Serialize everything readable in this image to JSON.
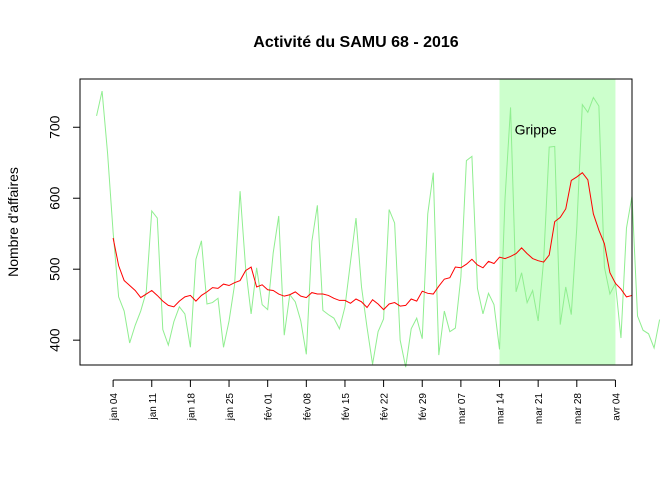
{
  "chart_data": {
    "type": "line",
    "title": "Activité du SAMU 68 - 2016",
    "xlabel": "",
    "ylabel": "Nombre d'affaires",
    "x_range": [
      "2015-12-29",
      "2016-04-07"
    ],
    "ylim": [
      365,
      768
    ],
    "y_ticks": [
      400,
      500,
      600,
      700
    ],
    "x_ticks": [
      {
        "date": "2016-01-04",
        "label": "jan 04"
      },
      {
        "date": "2016-01-11",
        "label": "jan 11"
      },
      {
        "date": "2016-01-18",
        "label": "jan 18"
      },
      {
        "date": "2016-01-25",
        "label": "jan 25"
      },
      {
        "date": "2016-02-01",
        "label": "fév 01"
      },
      {
        "date": "2016-02-08",
        "label": "fév 08"
      },
      {
        "date": "2016-02-15",
        "label": "fév 15"
      },
      {
        "date": "2016-02-22",
        "label": "fév 22"
      },
      {
        "date": "2016-02-29",
        "label": "fév 29"
      },
      {
        "date": "2016-03-07",
        "label": "mar 07"
      },
      {
        "date": "2016-03-14",
        "label": "mar 14"
      },
      {
        "date": "2016-03-21",
        "label": "mar 21"
      },
      {
        "date": "2016-03-28",
        "label": "mar 28"
      },
      {
        "date": "2016-04-04",
        "label": "avr 04"
      }
    ],
    "grid": false,
    "annotations": [
      {
        "type": "shaded_region",
        "from": "2016-03-14",
        "to": "2016-04-04",
        "color": "#ccffcc",
        "label": "Grippe",
        "label_date": "2016-03-18",
        "label_y": 697
      }
    ],
    "series": [
      {
        "color": "#90ee90",
        "start": "2016-01-01",
        "step_days": 1,
        "values": [
          716,
          751,
          663,
          552,
          461,
          441,
          396,
          421,
          441,
          468,
          582,
          572,
          415,
          393,
          426,
          447,
          437,
          390,
          514,
          540,
          451,
          453,
          459,
          390,
          427,
          478,
          610,
          502,
          437,
          502,
          450,
          443,
          523,
          575,
          407,
          464,
          454,
          427,
          380,
          539,
          590,
          442,
          436,
          431,
          416,
          447,
          510,
          572,
          475,
          418,
          366,
          412,
          430,
          584,
          565,
          400,
          362,
          416,
          431,
          402,
          578,
          636,
          379,
          441,
          412,
          417,
          489,
          653,
          659,
          473,
          437,
          466,
          450,
          387,
          600,
          728,
          468,
          495,
          453,
          470,
          427,
          513,
          672,
          673,
          422,
          475,
          436,
          559,
          732,
          721,
          742,
          730,
          503,
          465,
          480,
          403,
          558,
          603,
          434,
          414,
          409,
          389,
          429
        ]
      },
      {
        "color": "#ff0000",
        "start": "2016-01-04",
        "step_days": 1,
        "values": [
          544,
          505,
          484,
          477,
          470,
          460,
          465,
          470,
          463,
          455,
          449,
          447,
          455,
          461,
          463,
          455,
          463,
          468,
          474,
          473,
          479,
          477,
          481,
          484,
          498,
          503,
          475,
          478,
          471,
          470,
          465,
          462,
          464,
          468,
          462,
          460,
          467,
          465,
          465,
          463,
          459,
          456,
          456,
          452,
          458,
          454,
          446,
          457,
          451,
          443,
          451,
          453,
          448,
          449,
          458,
          455,
          469,
          466,
          465,
          476,
          486,
          488,
          503,
          502,
          507,
          514,
          506,
          502,
          511,
          508,
          517,
          515,
          518,
          522,
          530,
          522,
          515,
          512,
          510,
          520,
          567,
          573,
          585,
          625,
          630,
          636,
          626,
          578,
          555,
          536,
          495,
          480,
          472,
          461,
          463
        ]
      }
    ]
  }
}
